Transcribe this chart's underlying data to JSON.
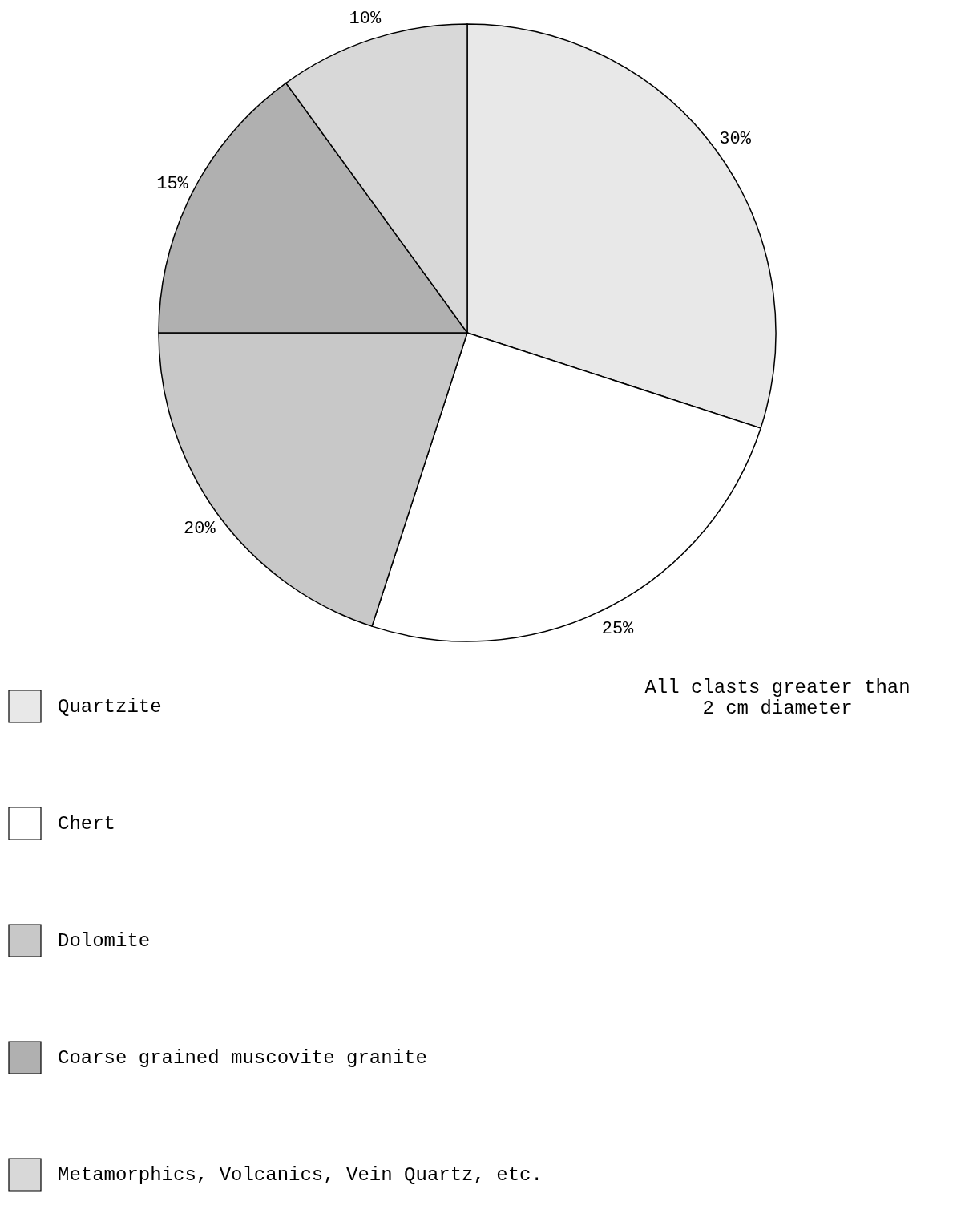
{
  "chart_data": {
    "type": "pie",
    "categories": [
      "Quartzite",
      "Chert",
      "Dolomite",
      "Coarse grained muscovite granite",
      "Metamorphics, Volcanics, Vein Quartz, etc."
    ],
    "values": [
      30,
      25,
      20,
      15,
      10
    ],
    "value_labels": [
      "30%",
      "25%",
      "20%",
      "15%",
      "10%"
    ],
    "colors": [
      "#e8e8e8",
      "#ffffff",
      "#c8c8c8",
      "#b0b0b0",
      "#d8d8d8"
    ],
    "legend": "bottom left",
    "annotations": [
      "All clasts greater than\n2 cm diameter"
    ]
  }
}
